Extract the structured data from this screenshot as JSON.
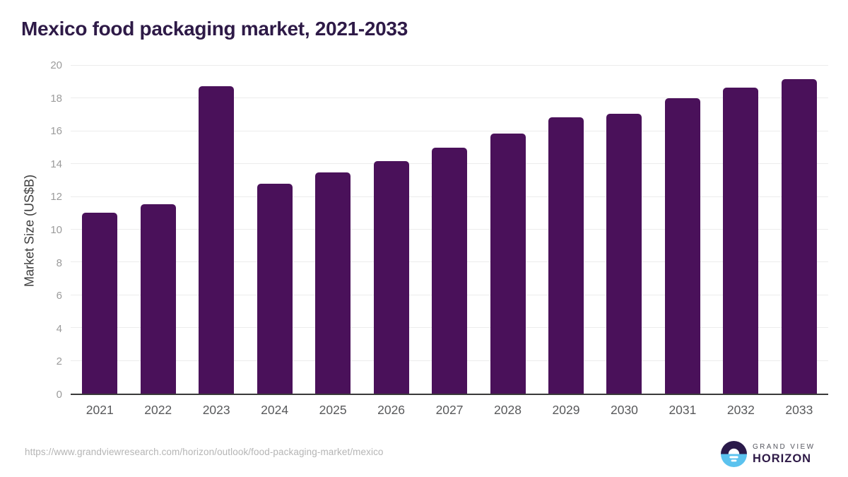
{
  "title": "Mexico food packaging market, 2021-2033",
  "footer": {
    "source_url": "https://www.grandviewresearch.com/horizon/outlook/food-packaging-market/mexico",
    "logo": {
      "line1": "GRAND VIEW",
      "line2": "HORIZON",
      "mark": "sunrise-over-water-icon"
    }
  },
  "colors": {
    "bar": "#4A115A",
    "title": "#2E1A47",
    "x_tick_label": "#58595B",
    "y_tick_label": "#9B9B9B",
    "y_axis_title": "#3D3D3D",
    "gridline": "#ECECEC",
    "baseline": "#3A3A3A",
    "url_text": "#B5B5B5",
    "logo_dark": "#2A1A4A",
    "logo_blue": "#5BC2EE",
    "logo_gray": "#55565F"
  },
  "chart_data": {
    "type": "bar",
    "title": "Mexico food packaging market, 2021-2033",
    "categories": [
      "2021",
      "2022",
      "2023",
      "2024",
      "2025",
      "2026",
      "2027",
      "2028",
      "2029",
      "2030",
      "2031",
      "2032",
      "2033"
    ],
    "values": [
      11.05,
      11.55,
      18.75,
      12.8,
      13.5,
      14.2,
      15.0,
      15.85,
      16.85,
      17.05,
      18.0,
      18.65,
      19.2
    ],
    "xlabel": "",
    "ylabel": "Market Size (US$B)",
    "ylim": [
      0,
      20
    ],
    "ytick_step": 2,
    "grid": true,
    "legend": false,
    "bar_color": "#4A115A"
  }
}
